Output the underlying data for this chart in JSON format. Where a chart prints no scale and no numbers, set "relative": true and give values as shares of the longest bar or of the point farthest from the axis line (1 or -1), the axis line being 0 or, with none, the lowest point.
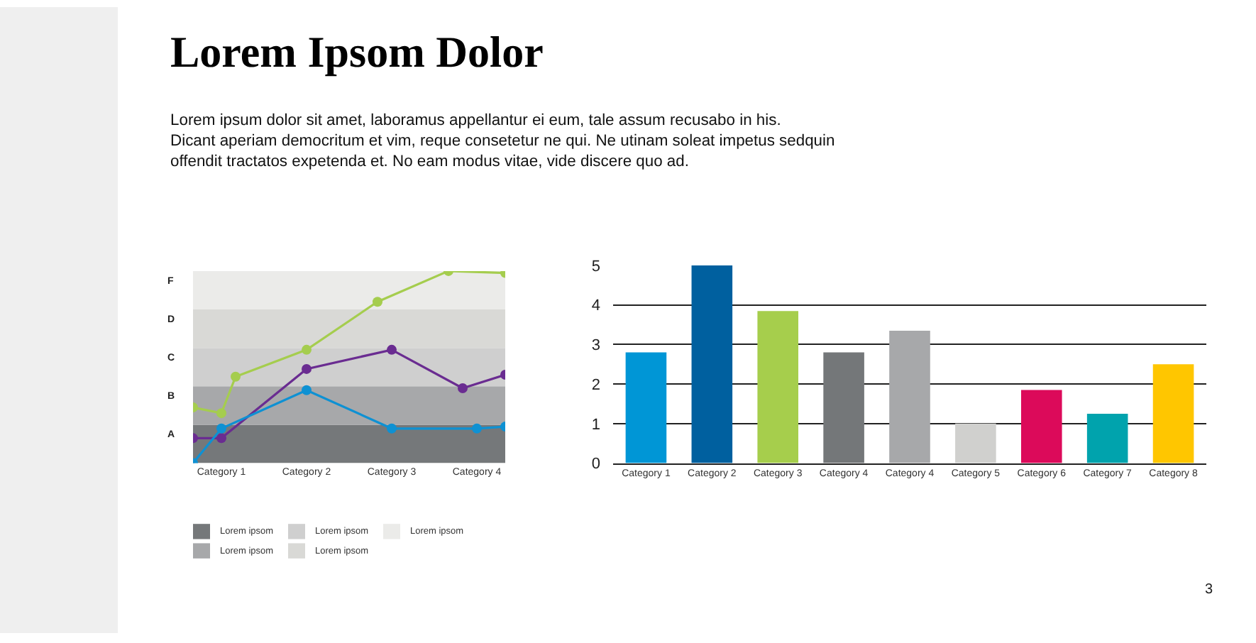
{
  "chart_data": [
    {
      "type": "line",
      "title": "Lorem Ipsom Dolor",
      "subtitle": "Lorem ipsum dolor sit amet, laboramus appellantur ei eum, tale assum recusabo in his.\nDicant aperiam democritum et vim, reque consetetur ne qui. Ne utinam soleat impetus sedquin\noffendit tractatos expetenda et. No eam modus vitae, vide discere quo ad.",
      "relative": true,
      "categories": [
        null,
        null,
        "Category 1",
        null,
        null,
        null,
        null,
        null,
        "Category 2",
        null,
        null,
        null,
        null,
        null,
        "Category 3",
        null,
        null,
        null,
        null,
        null,
        "Category 4",
        null,
        null
      ],
      "marker": "circle",
      "line_style": "solid",
      "series": [
        {
          "color": "#a5cd4e",
          "values": [
            0.29,
            null,
            0.26,
            0.45,
            null,
            null,
            null,
            null,
            0.59,
            null,
            null,
            null,
            null,
            0.84,
            null,
            null,
            null,
            null,
            1.0,
            null,
            null,
            null,
            0.99
          ]
        },
        {
          "color": "#6a2c91",
          "values": [
            0.13,
            null,
            0.13,
            null,
            null,
            null,
            null,
            null,
            0.49,
            null,
            null,
            null,
            null,
            null,
            0.59,
            null,
            null,
            null,
            null,
            0.39,
            null,
            null,
            0.46
          ]
        },
        {
          "color": "#0e91d3",
          "values": [
            0.0,
            null,
            0.18,
            null,
            null,
            null,
            null,
            null,
            0.38,
            null,
            null,
            null,
            null,
            null,
            0.18,
            null,
            null,
            null,
            null,
            null,
            0.18,
            null,
            0.19
          ]
        }
      ],
      "bands": [
        {
          "axis": "y",
          "from": 0,
          "to": 0.2,
          "color": "#75787a",
          "label": "Lorem ipsom"
        },
        {
          "axis": "y",
          "from": 0.2,
          "to": 0.4,
          "color": "#a7a8aa",
          "label": "Lorem ipsom"
        },
        {
          "axis": "y",
          "from": 0.4,
          "to": 0.6,
          "color": "#cfcfcf",
          "label": "Lorem ipsom"
        },
        {
          "axis": "y",
          "from": 0.6,
          "to": 0.8,
          "color": "#d9d9d6",
          "label": "Lorem ipsom"
        },
        {
          "axis": "y",
          "from": 0.8,
          "to": 1.0,
          "color": "#ebebe9",
          "label": "Lorem ipsom"
        }
      ],
      "annotations": [
        "A",
        "B",
        "C",
        "D",
        "F"
      ]
    },
    {
      "type": "bar",
      "categories": [
        "Category 1",
        "Category 2",
        "Category 3",
        "Category 4",
        "Category 4",
        "Category 5",
        "Category 6",
        "Category 7",
        "Category 8"
      ],
      "values": [
        2.8,
        5.0,
        3.85,
        2.8,
        3.35,
        1.0,
        1.85,
        1.25,
        2.5
      ],
      "colors": [
        "#0096d6",
        "#00609f",
        "#a6ce4c",
        "#747779",
        "#a7a8aa",
        "#d0d0ce",
        "#dc0a5a",
        "#00a3ad",
        "#ffc600"
      ],
      "ylim": [
        0,
        5
      ],
      "yticks": [
        0,
        1,
        2,
        3,
        4,
        5
      ],
      "grid": "y",
      "annotations": [
        "3"
      ]
    }
  ]
}
